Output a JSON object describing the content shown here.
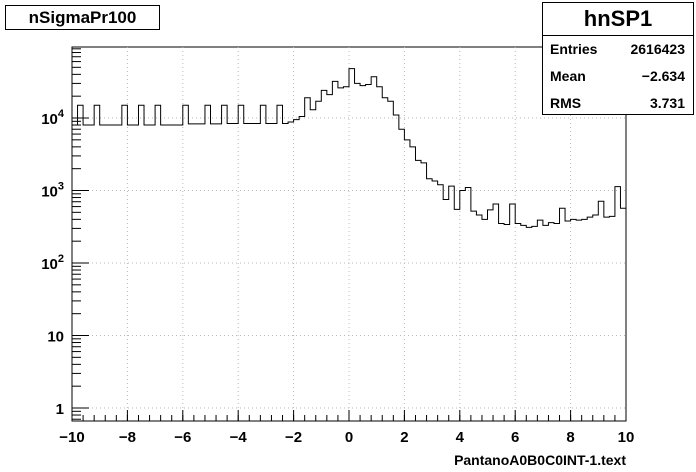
{
  "title": "nSigmaPr100",
  "stats": {
    "name": "hnSP1",
    "rows": [
      {
        "key": "Entries",
        "value": "2616423"
      },
      {
        "key": "Mean",
        "value": "−2.634"
      },
      {
        "key": "RMS",
        "value": "3.731"
      }
    ]
  },
  "chart_data": {
    "type": "step histogram",
    "title": "nSigmaPr100",
    "xlabel": "PantanoA0B0C0INT-1.text",
    "ylabel": "",
    "xlim": [
      -10,
      10
    ],
    "ylim": [
      0.7,
      100000
    ],
    "log_y": true,
    "grid": true,
    "x_ticks": [
      -10,
      -8,
      -6,
      -4,
      -2,
      0,
      2,
      4,
      6,
      8,
      10
    ],
    "x_tick_labels": [
      "−10",
      "−8",
      "−6",
      "−4",
      "−2",
      "0",
      "2",
      "4",
      "6",
      "8",
      "10"
    ],
    "y_ticks": [
      1,
      10,
      100,
      1000,
      10000
    ],
    "y_tick_labels": [
      {
        "base": "1",
        "exp": ""
      },
      {
        "base": "10",
        "exp": ""
      },
      {
        "base": "10",
        "exp": "2"
      },
      {
        "base": "10",
        "exp": "3"
      },
      {
        "base": "10",
        "exp": "4"
      }
    ],
    "bin_width": 0.2,
    "bin_start": -10,
    "values": [
      8000,
      15000,
      8000,
      8000,
      15000,
      8000,
      8000,
      8000,
      8000,
      15000,
      8000,
      8000,
      15000,
      8000,
      8000,
      15000,
      8000,
      8000,
      8000,
      8000,
      15000,
      8300,
      8300,
      8300,
      15000,
      8300,
      8300,
      15000,
      8400,
      8400,
      15000,
      8400,
      8400,
      8400,
      15000,
      8400,
      8400,
      15000,
      8400,
      8800,
      9500,
      10500,
      19000,
      13000,
      17000,
      24000,
      21000,
      32000,
      26000,
      27000,
      48000,
      30000,
      28000,
      29000,
      37000,
      27000,
      19000,
      17000,
      11000,
      7000,
      5000,
      4000,
      2600,
      2400,
      1450,
      1350,
      1200,
      750,
      1150,
      550,
      1000,
      1100,
      520,
      460,
      400,
      540,
      650,
      350,
      340,
      650,
      350,
      330,
      310,
      320,
      390,
      330,
      360,
      350,
      570,
      380,
      400,
      390,
      400,
      430,
      460,
      710,
      430,
      440,
      1130,
      570
    ]
  }
}
